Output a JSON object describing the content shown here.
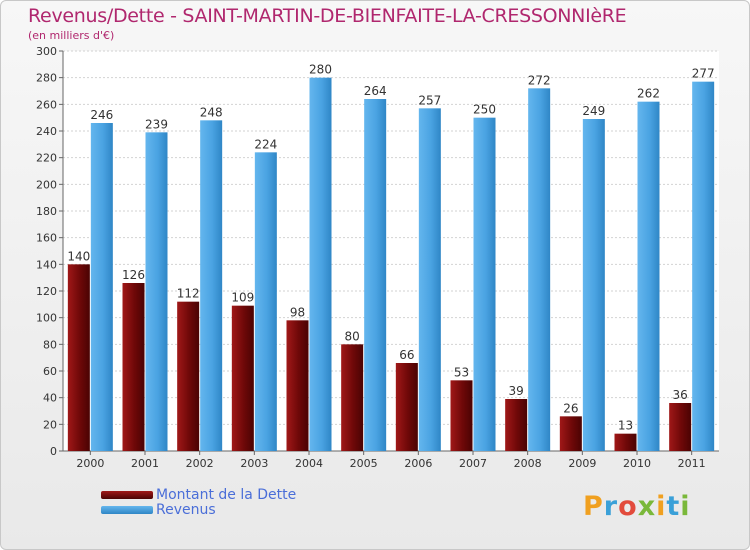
{
  "title": "Revenus/Dette - SAINT-MARTIN-DE-BIENFAITE-LA-CRESSONNIèRE",
  "subtitle": "(en milliers d'€)",
  "logo": {
    "text": "Proxiti",
    "colors": [
      "#f0a020",
      "#3aa0d8",
      "#e24b3c",
      "#7ab83a",
      "#f0a020",
      "#3aa0d8",
      "#7ab83a"
    ]
  },
  "colors": {
    "dette": "#7b0a0a",
    "revenus": "#4aa3e2",
    "text": "#b0276e",
    "legend_text": "#4a6ed8"
  },
  "chart_data": {
    "type": "bar",
    "categories": [
      "2000",
      "2001",
      "2002",
      "2003",
      "2004",
      "2005",
      "2006",
      "2007",
      "2008",
      "2009",
      "2010",
      "2011"
    ],
    "series": [
      {
        "name": "Montant de la Dette",
        "values": [
          140,
          126,
          112,
          109,
          98,
          80,
          66,
          53,
          39,
          26,
          13,
          36
        ]
      },
      {
        "name": "Revenus",
        "values": [
          246,
          239,
          248,
          224,
          280,
          264,
          257,
          250,
          272,
          249,
          262,
          277
        ]
      }
    ],
    "ylim": [
      0,
      300
    ],
    "yticks": [
      0,
      20,
      40,
      60,
      80,
      100,
      120,
      140,
      160,
      180,
      200,
      220,
      240,
      260,
      280,
      300
    ],
    "grid": true,
    "legend": "bottom-left"
  }
}
